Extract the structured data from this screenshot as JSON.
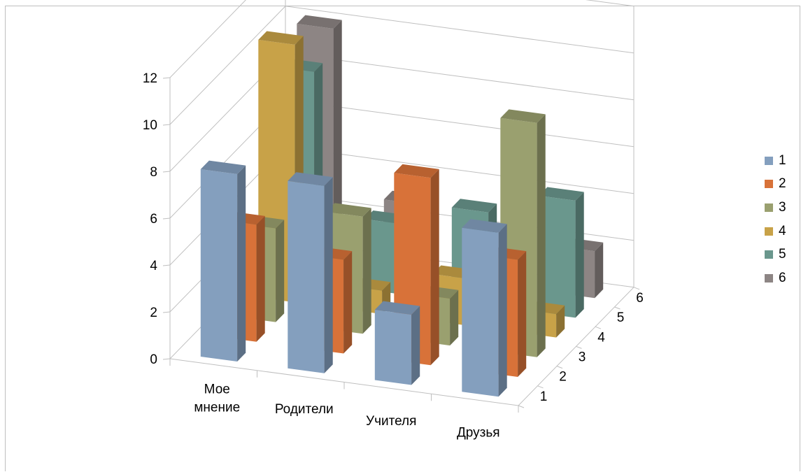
{
  "chart_data": {
    "type": "bar",
    "subtype": "3d-column",
    "title": "",
    "xlabel": "",
    "ylabel": "",
    "ylim": [
      0,
      12
    ],
    "y_ticks": [
      "0",
      "2",
      "4",
      "6",
      "8",
      "10",
      "12"
    ],
    "categories": [
      "Мое\nмнение",
      "Родители",
      "Учителя",
      "Друзья"
    ],
    "depth_ticks": [
      "1",
      "2",
      "3",
      "4",
      "5",
      "6"
    ],
    "gridlines": true,
    "legend_position": "right",
    "series": [
      {
        "name": "1",
        "color": "#849fbe",
        "values": [
          8,
          8,
          3,
          7
        ]
      },
      {
        "name": "2",
        "color": "#d87239",
        "values": [
          5,
          4,
          8,
          5
        ]
      },
      {
        "name": "3",
        "color": "#9aa06f",
        "values": [
          4,
          5,
          2,
          10
        ]
      },
      {
        "name": "4",
        "color": "#c8a248",
        "values": [
          11,
          1,
          2,
          1
        ]
      },
      {
        "name": "5",
        "color": "#6a978d",
        "values": [
          9,
          3,
          4,
          5
        ]
      },
      {
        "name": "6",
        "color": "#8d8584",
        "values": [
          10,
          3,
          1,
          2
        ]
      }
    ]
  }
}
